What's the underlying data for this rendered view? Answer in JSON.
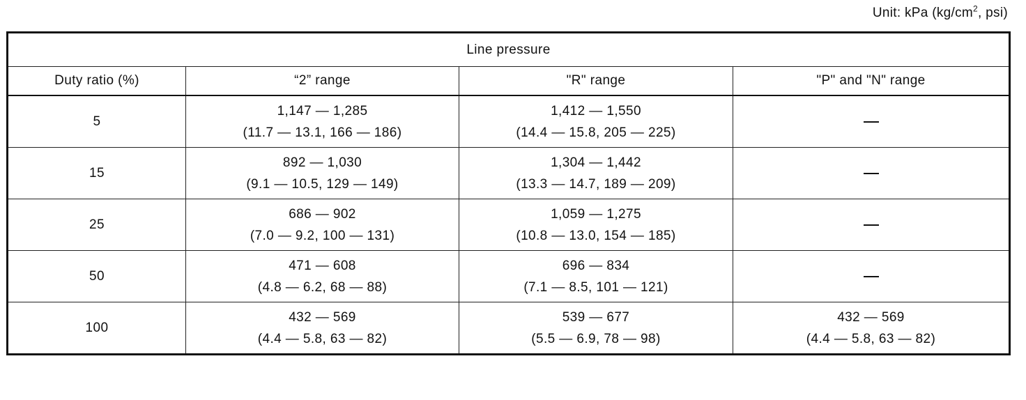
{
  "unit_note": {
    "prefix": "Unit: kPa (kg/cm",
    "superscript": "2",
    "suffix": ", psi)"
  },
  "table": {
    "title": "Line pressure",
    "columns": [
      "Duty ratio (%)",
      "“2” range",
      "\"R\" range",
      "\"P\" and \"N\" range"
    ],
    "rows": [
      {
        "duty": "5",
        "range_2": {
          "kpa": "1,147 — 1,285",
          "other": "(11.7 — 13.1, 166 — 186)"
        },
        "range_r": {
          "kpa": "1,412 — 1,550",
          "other": "(14.4 — 15.8, 205 — 225)"
        },
        "range_pn": {
          "kpa": "—",
          "other": ""
        }
      },
      {
        "duty": "15",
        "range_2": {
          "kpa": "892 — 1,030",
          "other": "(9.1 — 10.5, 129 — 149)"
        },
        "range_r": {
          "kpa": "1,304 — 1,442",
          "other": "(13.3 — 14.7, 189 — 209)"
        },
        "range_pn": {
          "kpa": "—",
          "other": ""
        }
      },
      {
        "duty": "25",
        "range_2": {
          "kpa": "686 — 902",
          "other": "(7.0 — 9.2, 100 — 131)"
        },
        "range_r": {
          "kpa": "1,059 — 1,275",
          "other": "(10.8 — 13.0, 154 — 185)"
        },
        "range_pn": {
          "kpa": "—",
          "other": ""
        }
      },
      {
        "duty": "50",
        "range_2": {
          "kpa": "471 — 608",
          "other": "(4.8 — 6.2, 68 — 88)"
        },
        "range_r": {
          "kpa": "696 — 834",
          "other": "(7.1 — 8.5, 101 — 121)"
        },
        "range_pn": {
          "kpa": "—",
          "other": ""
        }
      },
      {
        "duty": "100",
        "range_2": {
          "kpa": "432 — 569",
          "other": "(4.4 — 5.8, 63 — 82)"
        },
        "range_r": {
          "kpa": "539 — 677",
          "other": "(5.5 — 6.9, 78 — 98)"
        },
        "range_pn": {
          "kpa": "432 — 569",
          "other": "(4.4 — 5.8, 63 — 82)"
        }
      }
    ]
  }
}
